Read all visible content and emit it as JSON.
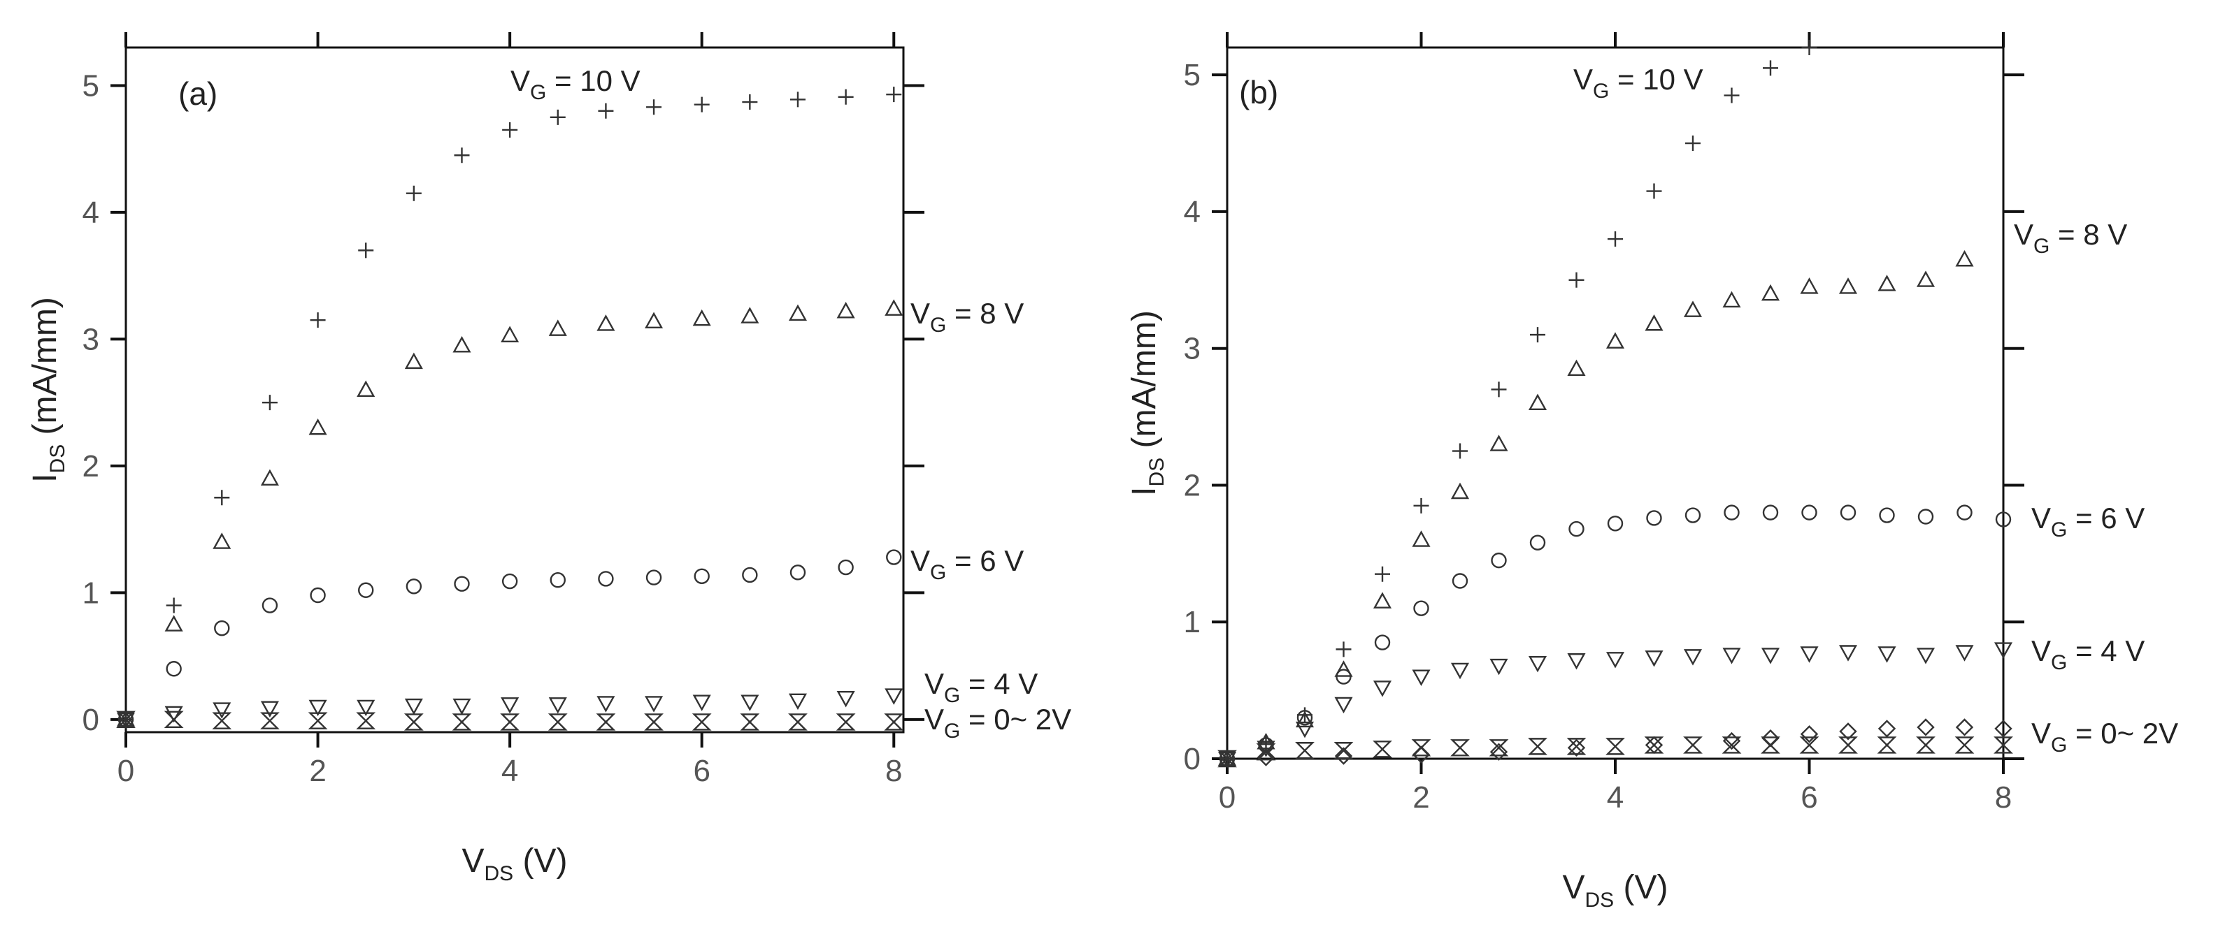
{
  "chart_data": [
    {
      "type": "scatter",
      "panel_label": "(a)",
      "xlabel": {
        "main": "V",
        "sub": "DS",
        "unit": "(V)"
      },
      "ylabel": {
        "main": "I",
        "sub": "DS",
        "unit": "(mA/mm)"
      },
      "xlim": [
        0,
        8.1
      ],
      "ylim": [
        -0.1,
        5.3
      ],
      "xticks": [
        0,
        2,
        4,
        6,
        8
      ],
      "yticks": [
        0,
        1,
        2,
        3,
        4,
        5
      ],
      "xtick_labels": [
        "0",
        "2",
        "4",
        "6",
        "8"
      ],
      "ytick_labels": [
        "0",
        "1",
        "2",
        "3",
        "4",
        "5"
      ],
      "series": [
        {
          "name": "VG = 10 V",
          "label_main": "V",
          "label_sub": "G",
          "label_rest": " = 10 V",
          "marker": "plus",
          "label_y": 5.0,
          "x": [
            0,
            0.5,
            1,
            1.5,
            2,
            2.5,
            3,
            3.5,
            4,
            4.5,
            5,
            5.5,
            6,
            6.5,
            7,
            7.5,
            8
          ],
          "y": [
            0,
            0.9,
            1.75,
            2.5,
            3.15,
            3.7,
            4.15,
            4.45,
            4.65,
            4.75,
            4.8,
            4.83,
            4.85,
            4.87,
            4.89,
            4.91,
            4.93
          ]
        },
        {
          "name": "VG = 8 V",
          "label_main": "V",
          "label_sub": "G",
          "label_rest": " = 8 V",
          "marker": "triangle-up",
          "label_y": 3.2,
          "x": [
            0,
            0.5,
            1,
            1.5,
            2,
            2.5,
            3,
            3.5,
            4,
            4.5,
            5,
            5.5,
            6,
            6.5,
            7,
            7.5,
            8
          ],
          "y": [
            0,
            0.75,
            1.4,
            1.9,
            2.3,
            2.6,
            2.82,
            2.95,
            3.03,
            3.08,
            3.12,
            3.14,
            3.16,
            3.18,
            3.2,
            3.22,
            3.24
          ]
        },
        {
          "name": "VG = 6 V",
          "label_main": "V",
          "label_sub": "G",
          "label_rest": " = 6 V",
          "marker": "circle",
          "label_y": 1.25,
          "x": [
            0,
            0.5,
            1,
            1.5,
            2,
            2.5,
            3,
            3.5,
            4,
            4.5,
            5,
            5.5,
            6,
            6.5,
            7,
            7.5,
            8
          ],
          "y": [
            0,
            0.4,
            0.72,
            0.9,
            0.98,
            1.02,
            1.05,
            1.07,
            1.09,
            1.1,
            1.11,
            1.12,
            1.13,
            1.14,
            1.16,
            1.2,
            1.28
          ]
        },
        {
          "name": "VG = 4 V",
          "label_main": "V",
          "label_sub": "G",
          "label_rest": " = 4 V",
          "marker": "triangle-down",
          "label_y": 0.28,
          "x": [
            0,
            0.5,
            1,
            1.5,
            2,
            2.5,
            3,
            3.5,
            4,
            4.5,
            5,
            5.5,
            6,
            6.5,
            7,
            7.5,
            8
          ],
          "y": [
            0,
            0.05,
            0.08,
            0.09,
            0.1,
            0.1,
            0.11,
            0.11,
            0.12,
            0.12,
            0.13,
            0.13,
            0.14,
            0.14,
            0.15,
            0.17,
            0.19
          ]
        },
        {
          "name": "VG = 0~ 2V",
          "label_main": "V",
          "label_sub": "G",
          "label_rest": " = 0~ 2V",
          "marker": "hourglass",
          "label_y": 0.0,
          "x": [
            0,
            0.5,
            1,
            1.5,
            2,
            2.5,
            3,
            3.5,
            4,
            4.5,
            5,
            5.5,
            6,
            6.5,
            7,
            7.5,
            8
          ],
          "y": [
            0,
            0,
            -0.01,
            -0.01,
            -0.01,
            -0.01,
            -0.02,
            -0.02,
            -0.02,
            -0.02,
            -0.02,
            -0.02,
            -0.02,
            -0.02,
            -0.02,
            -0.02,
            -0.02
          ]
        }
      ]
    },
    {
      "type": "scatter",
      "panel_label": "(b)",
      "xlabel": {
        "main": "V",
        "sub": "DS",
        "unit": "(V)"
      },
      "ylabel": {
        "main": "I",
        "sub": "DS",
        "unit": "(mA/mm)"
      },
      "xlim": [
        0,
        8
      ],
      "ylim": [
        0,
        5.2
      ],
      "xticks": [
        0,
        2,
        4,
        6,
        8
      ],
      "yticks": [
        0,
        1,
        2,
        3,
        4,
        5
      ],
      "xtick_labels": [
        "0",
        "2",
        "4",
        "6",
        "8"
      ],
      "ytick_labels": [
        "0",
        "1",
        "2",
        "3",
        "4",
        "5"
      ],
      "series": [
        {
          "name": "VG = 10 V",
          "label_main": "V",
          "label_sub": "G",
          "label_rest": " = 10 V",
          "marker": "plus",
          "label_y": 5.0,
          "label_xdata": 3.6,
          "x": [
            0,
            0.4,
            0.8,
            1.2,
            1.6,
            2.0,
            2.4,
            2.8,
            3.2,
            3.6,
            4.0,
            4.4,
            4.8,
            5.2,
            5.6,
            6.0
          ],
          "y": [
            0,
            0.12,
            0.32,
            0.8,
            1.35,
            1.85,
            2.25,
            2.7,
            3.1,
            3.5,
            3.8,
            4.15,
            4.5,
            4.85,
            5.05,
            5.2
          ]
        },
        {
          "name": "VG = 8 V",
          "label_main": "V",
          "label_sub": "G",
          "label_rest": " = 8 V",
          "marker": "triangle-up",
          "label_y": 3.9,
          "x": [
            0,
            0.4,
            0.8,
            1.2,
            1.6,
            2.0,
            2.4,
            2.8,
            3.2,
            3.6,
            4.0,
            4.4,
            4.8,
            5.2,
            5.6,
            6.0,
            6.4,
            6.8,
            7.2,
            7.6
          ],
          "y": [
            0,
            0.12,
            0.28,
            0.65,
            1.15,
            1.6,
            1.95,
            2.3,
            2.6,
            2.85,
            3.05,
            3.18,
            3.28,
            3.35,
            3.4,
            3.45,
            3.45,
            3.47,
            3.5,
            3.65
          ]
        },
        {
          "name": "VG = 6 V",
          "label_main": "V",
          "label_sub": "G",
          "label_rest": " = 6 V",
          "marker": "circle",
          "label_y": 1.8,
          "x": [
            0,
            0.4,
            0.8,
            1.2,
            1.6,
            2.0,
            2.4,
            2.8,
            3.2,
            3.6,
            4.0,
            4.4,
            4.8,
            5.2,
            5.6,
            6.0,
            6.4,
            6.8,
            7.2,
            7.6,
            8.0
          ],
          "y": [
            0,
            0.1,
            0.3,
            0.6,
            0.85,
            1.1,
            1.3,
            1.45,
            1.58,
            1.68,
            1.72,
            1.76,
            1.78,
            1.8,
            1.8,
            1.8,
            1.8,
            1.78,
            1.77,
            1.8,
            1.75
          ]
        },
        {
          "name": "VG = 4 V",
          "label_main": "V",
          "label_sub": "G",
          "label_rest": " = 4 V",
          "marker": "triangle-down",
          "label_y": 0.78,
          "x": [
            0,
            0.4,
            0.8,
            1.2,
            1.6,
            2.0,
            2.4,
            2.8,
            3.2,
            3.6,
            4.0,
            4.4,
            4.8,
            5.2,
            5.6,
            6.0,
            6.4,
            6.8,
            7.2,
            7.6,
            8.0
          ],
          "y": [
            0,
            0.08,
            0.22,
            0.4,
            0.52,
            0.6,
            0.65,
            0.68,
            0.7,
            0.72,
            0.73,
            0.74,
            0.75,
            0.76,
            0.76,
            0.77,
            0.78,
            0.77,
            0.76,
            0.78,
            0.8
          ]
        },
        {
          "name": "VG = 0~ 2V",
          "label_main": "V",
          "label_sub": "G",
          "label_rest": " = 0~ 2V",
          "marker": "hourglass",
          "label_y": 0.18,
          "x": [
            0,
            0.4,
            0.8,
            1.2,
            1.6,
            2.0,
            2.4,
            2.8,
            3.2,
            3.6,
            4.0,
            4.4,
            4.8,
            5.2,
            5.6,
            6.0,
            6.4,
            6.8,
            7.2,
            7.6,
            8.0
          ],
          "y": [
            0,
            0.05,
            0.06,
            0.06,
            0.07,
            0.08,
            0.08,
            0.08,
            0.09,
            0.09,
            0.09,
            0.1,
            0.1,
            0.1,
            0.1,
            0.1,
            0.1,
            0.1,
            0.1,
            0.1,
            0.1
          ]
        },
        {
          "name": "VG = 0~ 2V (diamond)",
          "marker": "diamond",
          "x": [
            0.4,
            1.2,
            2.0,
            2.8,
            3.6,
            4.4,
            5.2,
            5.6,
            6.0,
            6.4,
            6.8,
            7.2,
            7.6,
            8.0
          ],
          "y": [
            0.01,
            0.02,
            0.03,
            0.05,
            0.08,
            0.1,
            0.13,
            0.15,
            0.18,
            0.2,
            0.22,
            0.23,
            0.23,
            0.22
          ]
        }
      ]
    }
  ]
}
